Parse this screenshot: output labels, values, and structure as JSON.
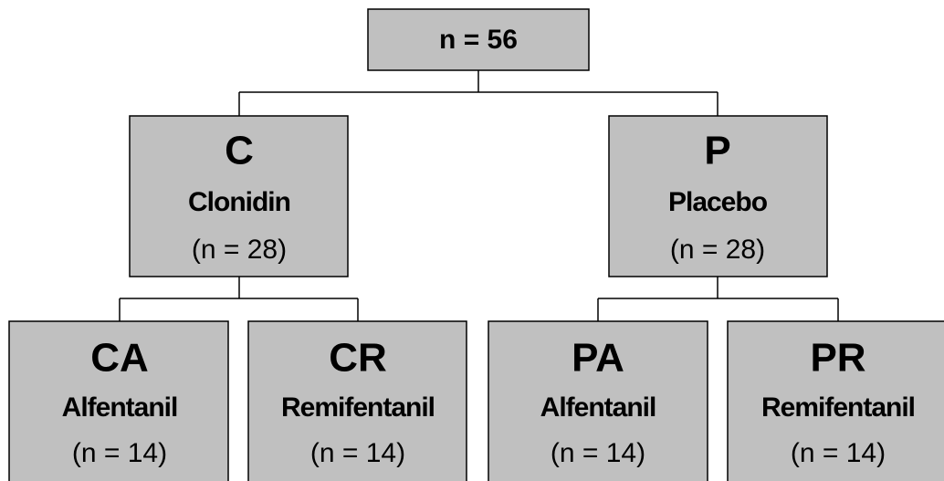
{
  "root": {
    "label": "n = 56"
  },
  "groups": [
    {
      "code": "C",
      "name": "Clonidin",
      "count": "(n = 28)",
      "children": [
        {
          "code": "CA",
          "name": "Alfentanil",
          "count": "(n = 14)"
        },
        {
          "code": "CR",
          "name": "Remifentanil",
          "count": "(n = 14)"
        }
      ]
    },
    {
      "code": "P",
      "name": "Placebo",
      "count": "(n = 28)",
      "children": [
        {
          "code": "PA",
          "name": "Alfentanil",
          "count": "(n = 14)"
        },
        {
          "code": "PR",
          "name": "Remifentanil",
          "count": "(n = 14)"
        }
      ]
    }
  ]
}
